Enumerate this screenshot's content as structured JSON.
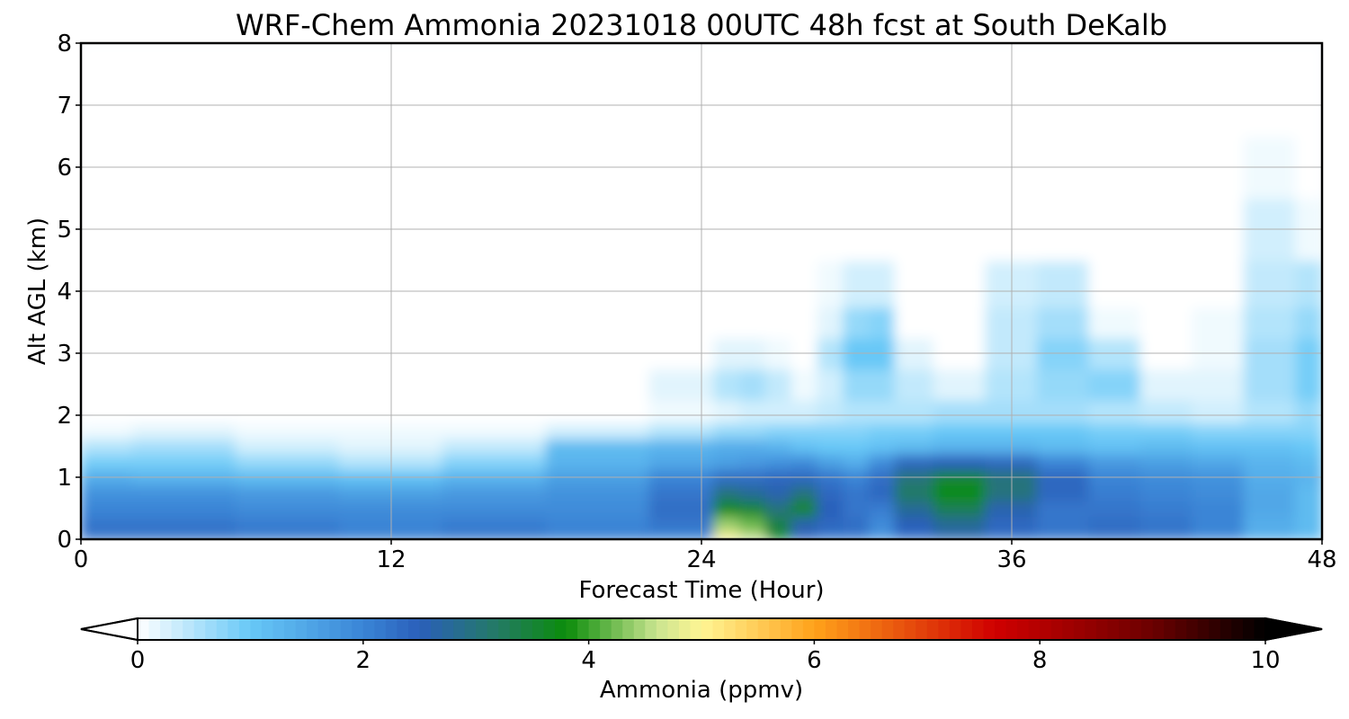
{
  "chart_data": {
    "type": "heatmap",
    "title": "WRF-Chem Ammonia  20231018 00UTC 48h fcst at South DeKalb",
    "xlabel": "Forecast Time (Hour)",
    "ylabel": "Alt AGL (km)",
    "xlim": [
      0,
      48
    ],
    "ylim": [
      0,
      8
    ],
    "x_ticks": [
      "0",
      "12",
      "24",
      "36",
      "48"
    ],
    "y_ticks": [
      "0",
      "1",
      "2",
      "3",
      "4",
      "5",
      "6",
      "7",
      "8"
    ],
    "grid": true,
    "colorbar": {
      "label": "Ammonia  (ppmv)",
      "range": [
        0,
        10
      ],
      "ticks": [
        "0",
        "2",
        "4",
        "6",
        "8",
        "10"
      ],
      "extend": "both",
      "stops": [
        {
          "value": 0,
          "color": "#ffffff"
        },
        {
          "value": 1,
          "color": "#67c8f7"
        },
        {
          "value": 2,
          "color": "#3a85d6"
        },
        {
          "value": 2.5,
          "color": "#2a5fba"
        },
        {
          "value": 3.2,
          "color": "#237b63"
        },
        {
          "value": 3.8,
          "color": "#0b8c0b"
        },
        {
          "value": 4.6,
          "color": "#c9e48f"
        },
        {
          "value": 5,
          "color": "#fff594"
        },
        {
          "value": 6,
          "color": "#ffa21a"
        },
        {
          "value": 7.6,
          "color": "#d00000"
        },
        {
          "value": 9,
          "color": "#6b0000"
        },
        {
          "value": 10,
          "color": "#000000"
        }
      ]
    },
    "hours": [
      0,
      4,
      8,
      12,
      16,
      20,
      24,
      25,
      26,
      27,
      28,
      29,
      30,
      31,
      32,
      34,
      36,
      38,
      40,
      42,
      44,
      46,
      48
    ],
    "alt_km": [
      0,
      0.25,
      0.5,
      0.75,
      1,
      1.25,
      1.5,
      1.75,
      2,
      2.5,
      3,
      3.5,
      4,
      5,
      6,
      7,
      8
    ],
    "values": [
      [
        2.3,
        2.3,
        2.2,
        2.1,
        2.2,
        2.1,
        2.0,
        5.0,
        4.6,
        3.6,
        2.5,
        2.2,
        2.2,
        1.8,
        2.3,
        2.6,
        2.3,
        2.2,
        2.3,
        2.2,
        2.0,
        1.4,
        1.2
      ],
      [
        2.2,
        2.2,
        2.1,
        2.0,
        2.1,
        2.0,
        2.2,
        4.4,
        4.2,
        3.4,
        2.6,
        2.4,
        2.3,
        1.9,
        2.5,
        2.8,
        2.4,
        2.2,
        2.3,
        2.2,
        2.0,
        1.4,
        1.2
      ],
      [
        2.0,
        2.0,
        1.9,
        1.9,
        1.9,
        1.9,
        2.3,
        3.7,
        3.5,
        3.0,
        3.6,
        2.5,
        2.2,
        2.1,
        2.8,
        3.3,
        2.6,
        2.2,
        2.2,
        2.1,
        2.0,
        1.5,
        1.2
      ],
      [
        1.8,
        1.8,
        1.7,
        1.6,
        1.7,
        1.8,
        2.2,
        3.0,
        2.8,
        2.6,
        3.0,
        2.4,
        2.2,
        2.4,
        3.2,
        3.8,
        3.0,
        2.4,
        2.1,
        2.0,
        1.9,
        1.5,
        1.2
      ],
      [
        1.4,
        1.3,
        1.2,
        1.1,
        1.3,
        1.6,
        2.0,
        2.3,
        2.3,
        2.4,
        2.4,
        2.2,
        2.0,
        2.3,
        3.0,
        3.5,
        3.0,
        2.4,
        2.0,
        1.9,
        1.8,
        1.4,
        1.3
      ],
      [
        0.9,
        0.9,
        0.7,
        0.5,
        0.8,
        1.3,
        1.5,
        1.6,
        1.7,
        1.8,
        1.9,
        1.6,
        1.4,
        1.9,
        2.4,
        2.5,
        2.4,
        2.0,
        1.7,
        1.6,
        1.5,
        1.3,
        1.2
      ],
      [
        0.5,
        0.6,
        0.3,
        0.2,
        0.4,
        1.2,
        1.3,
        1.4,
        1.4,
        1.3,
        1.1,
        1.0,
        1.0,
        1.1,
        1.2,
        1.3,
        1.3,
        1.2,
        1.1,
        1.2,
        1.1,
        1.1,
        1.0
      ],
      [
        0.1,
        0.2,
        0.1,
        0.1,
        0.1,
        0.3,
        0.5,
        0.7,
        0.7,
        0.8,
        0.8,
        0.8,
        0.8,
        0.9,
        0.9,
        1.0,
        1.0,
        1.0,
        0.9,
        0.9,
        0.8,
        0.8,
        0.8
      ],
      [
        0.0,
        0.0,
        0.0,
        0.0,
        0.0,
        0.0,
        0.1,
        0.2,
        0.3,
        0.3,
        0.3,
        0.4,
        0.5,
        0.5,
        0.5,
        0.6,
        0.6,
        0.6,
        0.5,
        0.4,
        0.3,
        0.5,
        0.7
      ],
      [
        0.0,
        0.0,
        0.0,
        0.0,
        0.0,
        0.0,
        0.2,
        0.5,
        0.6,
        0.4,
        0.1,
        0.3,
        0.7,
        0.7,
        0.4,
        0.2,
        0.5,
        0.7,
        0.8,
        0.2,
        0.2,
        0.6,
        0.9
      ],
      [
        0.0,
        0.0,
        0.0,
        0.0,
        0.0,
        0.0,
        0.0,
        0.2,
        0.2,
        0.1,
        0.0,
        0.5,
        1.0,
        1.0,
        0.2,
        0.0,
        0.4,
        0.8,
        0.5,
        0.0,
        0.1,
        0.6,
        0.9
      ],
      [
        0.0,
        0.0,
        0.0,
        0.0,
        0.0,
        0.0,
        0.0,
        0.0,
        0.0,
        0.0,
        0.0,
        0.2,
        0.7,
        0.8,
        0.0,
        0.0,
        0.4,
        0.6,
        0.1,
        0.0,
        0.1,
        0.5,
        0.7
      ],
      [
        0.0,
        0.0,
        0.0,
        0.0,
        0.0,
        0.0,
        0.0,
        0.0,
        0.0,
        0.0,
        0.0,
        0.1,
        0.3,
        0.3,
        0.0,
        0.0,
        0.3,
        0.4,
        0.0,
        0.0,
        0.0,
        0.4,
        0.5
      ],
      [
        0.0,
        0.0,
        0.0,
        0.0,
        0.0,
        0.0,
        0.0,
        0.0,
        0.0,
        0.0,
        0.0,
        0.0,
        0.0,
        0.0,
        0.0,
        0.0,
        0.0,
        0.0,
        0.0,
        0.0,
        0.0,
        0.3,
        0.1
      ],
      [
        0.0,
        0.0,
        0.0,
        0.0,
        0.0,
        0.0,
        0.0,
        0.0,
        0.0,
        0.0,
        0.0,
        0.0,
        0.0,
        0.0,
        0.0,
        0.0,
        0.0,
        0.0,
        0.0,
        0.0,
        0.0,
        0.1,
        0.0
      ],
      [
        0.0,
        0.0,
        0.0,
        0.0,
        0.0,
        0.0,
        0.0,
        0.0,
        0.0,
        0.0,
        0.0,
        0.0,
        0.0,
        0.0,
        0.0,
        0.0,
        0.0,
        0.0,
        0.0,
        0.0,
        0.0,
        0.0,
        0.0
      ],
      [
        0.0,
        0.0,
        0.0,
        0.0,
        0.0,
        0.0,
        0.0,
        0.0,
        0.0,
        0.0,
        0.0,
        0.0,
        0.0,
        0.0,
        0.0,
        0.0,
        0.0,
        0.0,
        0.0,
        0.0,
        0.0,
        0.0,
        0.0
      ]
    ]
  }
}
